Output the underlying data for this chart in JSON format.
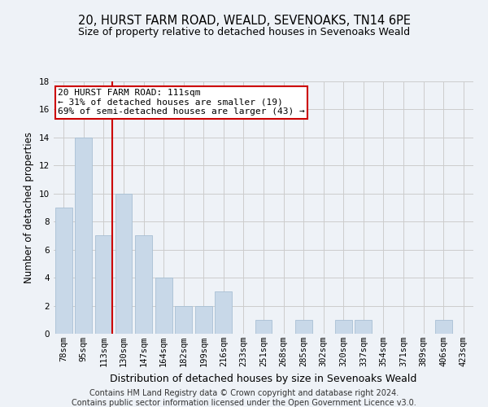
{
  "title": "20, HURST FARM ROAD, WEALD, SEVENOAKS, TN14 6PE",
  "subtitle": "Size of property relative to detached houses in Sevenoaks Weald",
  "xlabel": "Distribution of detached houses by size in Sevenoaks Weald",
  "ylabel": "Number of detached properties",
  "categories": [
    "78sqm",
    "95sqm",
    "113sqm",
    "130sqm",
    "147sqm",
    "164sqm",
    "182sqm",
    "199sqm",
    "216sqm",
    "233sqm",
    "251sqm",
    "268sqm",
    "285sqm",
    "302sqm",
    "320sqm",
    "337sqm",
    "354sqm",
    "371sqm",
    "389sqm",
    "406sqm",
    "423sqm"
  ],
  "values": [
    9,
    14,
    7,
    10,
    7,
    4,
    2,
    2,
    3,
    0,
    1,
    0,
    1,
    0,
    1,
    1,
    0,
    0,
    0,
    1,
    0
  ],
  "bar_color": "#c8d8e8",
  "bar_edgecolor": "#a8c0d4",
  "bar_linewidth": 0.6,
  "vline_index": 2,
  "vline_color": "#cc0000",
  "annotation_line1": "20 HURST FARM ROAD: 111sqm",
  "annotation_line2": "← 31% of detached houses are smaller (19)",
  "annotation_line3": "69% of semi-detached houses are larger (43) →",
  "annotation_box_edgecolor": "#cc0000",
  "annotation_box_facecolor": "#ffffff",
  "ylim": [
    0,
    18
  ],
  "yticks": [
    0,
    2,
    4,
    6,
    8,
    10,
    12,
    14,
    16,
    18
  ],
  "footer1": "Contains HM Land Registry data © Crown copyright and database right 2024.",
  "footer2": "Contains public sector information licensed under the Open Government Licence v3.0.",
  "background_color": "#eef2f7",
  "grid_color": "#cccccc",
  "title_fontsize": 10.5,
  "subtitle_fontsize": 9,
  "xlabel_fontsize": 9,
  "ylabel_fontsize": 8.5,
  "tick_fontsize": 7.5,
  "footer_fontsize": 7,
  "annotation_fontsize": 8
}
